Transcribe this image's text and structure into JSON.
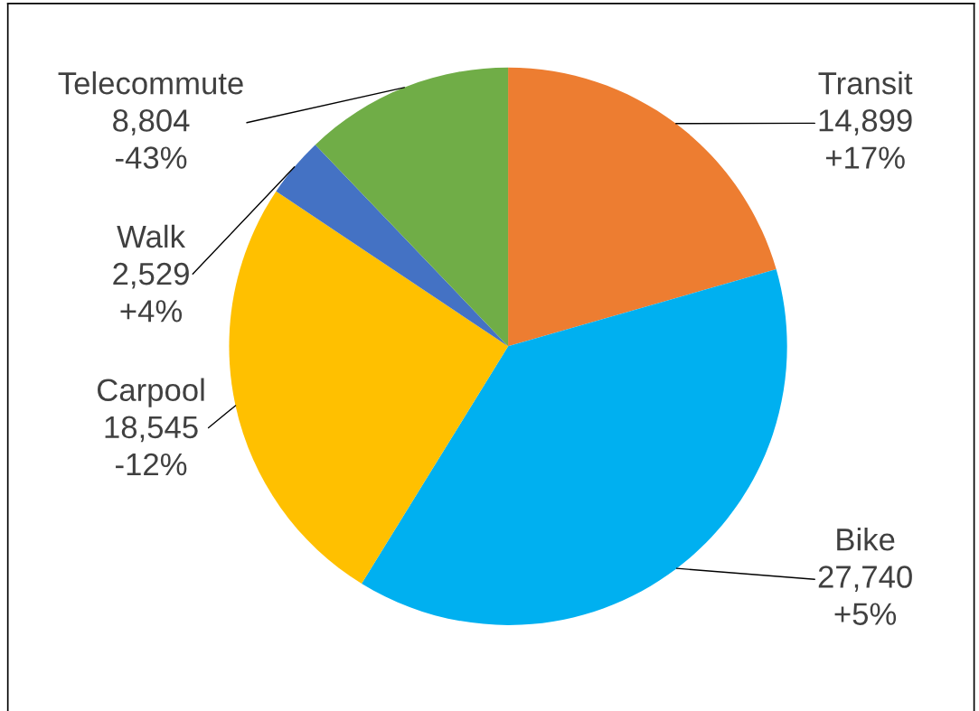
{
  "chart_data": {
    "type": "pie",
    "categories": [
      "Transit",
      "Bike",
      "Carpool",
      "Walk",
      "Telecommute"
    ],
    "values": [
      14899,
      27740,
      18545,
      2529,
      8804
    ],
    "colors": [
      "#ed7d31",
      "#00b0f0",
      "#ffc000",
      "#4472c4",
      "#70ad47"
    ],
    "value_labels": [
      "14,899\n+17%",
      "27,740\n+5%",
      "18,545\n-12%",
      "2,529\n+4%",
      "8,804\n-43%"
    ],
    "legend": false
  }
}
